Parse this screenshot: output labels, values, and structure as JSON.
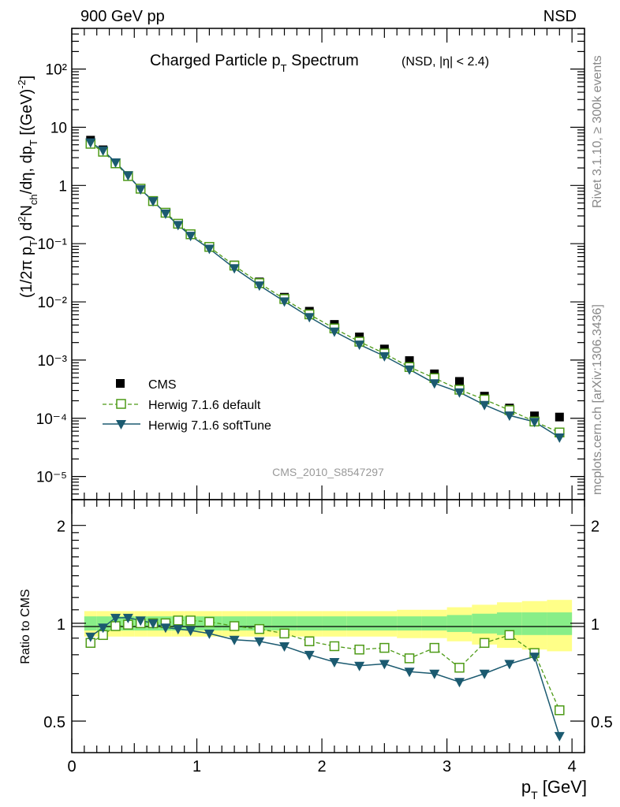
{
  "header": {
    "left": "900 GeV pp",
    "right": "NSD"
  },
  "side_labels": {
    "rivet": "Rivet 3.1.10, ≥ 300k events",
    "mcplots": "mcplots.cern.ch [arXiv:1306.3436]"
  },
  "chart_data": [
    {
      "type": "scatter",
      "panel": "main",
      "title_main": "Charged Particle p",
      "title_sub": "T",
      "title_rest": " Spectrum",
      "title_note": "(NSD, |η| < 2.4)",
      "ylabel": "(1/2π p_T) d²N_ch/dη, dp_T [(GeV)⁻²]",
      "yscale": "log",
      "ylim": [
        4e-06,
        500
      ],
      "xlim": [
        0,
        4.1
      ],
      "analysis_label": "CMS_2010_S8547297",
      "y_ticks": [
        "10⁻⁵",
        "10⁻⁴",
        "10⁻³",
        "10⁻²",
        "10⁻¹",
        "1",
        "10",
        "10²"
      ],
      "x": [
        0.15,
        0.25,
        0.35,
        0.45,
        0.55,
        0.65,
        0.75,
        0.85,
        0.95,
        1.1,
        1.3,
        1.5,
        1.7,
        1.9,
        2.1,
        2.3,
        2.5,
        2.7,
        2.9,
        3.1,
        3.3,
        3.5,
        3.7,
        3.9
      ],
      "legend": [
        "CMS",
        "Herwig 7.1.6 default",
        "Herwig 7.1.6 softTune"
      ],
      "series": [
        {
          "name": "CMS",
          "color": "#000000",
          "values": [
            6.0,
            4.1,
            2.45,
            1.45,
            0.88,
            0.54,
            0.34,
            0.22,
            0.145,
            0.088,
            0.043,
            0.022,
            0.012,
            0.0069,
            0.0041,
            0.0025,
            0.00155,
            0.00098,
            0.00058,
            0.00043,
            0.00024,
            0.00015,
            0.00011,
            0.000105
          ]
        },
        {
          "name": "Herwig 7.1.6 default",
          "color": "#4d9a16",
          "values": [
            5.2,
            3.8,
            2.4,
            1.45,
            0.88,
            0.54,
            0.34,
            0.22,
            0.145,
            0.088,
            0.042,
            0.021,
            0.0112,
            0.0061,
            0.0035,
            0.00207,
            0.0013,
            0.00076,
            0.00049,
            0.00031,
            0.00021,
            0.000138,
            8.8e-05,
            5.7e-05
          ]
        },
        {
          "name": "Herwig 7.1.6 softTune",
          "color": "#1b5a70",
          "values": [
            5.5,
            4.0,
            2.5,
            1.5,
            0.86,
            0.54,
            0.33,
            0.21,
            0.137,
            0.082,
            0.038,
            0.0192,
            0.0102,
            0.0055,
            0.0031,
            0.00185,
            0.00117,
            0.00069,
            0.0004,
            0.00028,
            0.00017,
            0.000112,
            8.7e-05,
            4.7e-05
          ]
        }
      ]
    },
    {
      "type": "line",
      "panel": "ratio",
      "ylabel": "Ratio to CMS",
      "xlabel": "p_T [GeV]",
      "yscale": "log",
      "ylim": [
        0.4,
        2.4
      ],
      "xlim": [
        0,
        4.1
      ],
      "y_ticks": [
        0.5,
        1,
        2
      ],
      "x_ticks": [
        0,
        1,
        2,
        3,
        4
      ],
      "band_edges": [
        0.1,
        0.2,
        0.3,
        0.4,
        0.5,
        0.6,
        0.7,
        0.8,
        0.9,
        1.0,
        1.2,
        1.4,
        1.6,
        1.8,
        2.0,
        2.2,
        2.4,
        2.6,
        2.8,
        3.0,
        3.2,
        3.4,
        3.6,
        3.8,
        4.0
      ],
      "band_inner": [
        0.05,
        0.05,
        0.05,
        0.05,
        0.05,
        0.05,
        0.05,
        0.05,
        0.05,
        0.05,
        0.05,
        0.05,
        0.05,
        0.05,
        0.05,
        0.05,
        0.05,
        0.05,
        0.05,
        0.06,
        0.07,
        0.08,
        0.08,
        0.08
      ],
      "band_outer": [
        0.09,
        0.09,
        0.09,
        0.09,
        0.09,
        0.09,
        0.09,
        0.09,
        0.09,
        0.09,
        0.09,
        0.09,
        0.09,
        0.09,
        0.09,
        0.09,
        0.09,
        0.1,
        0.1,
        0.12,
        0.14,
        0.16,
        0.17,
        0.18
      ],
      "band_colors": {
        "inner": "#88ee88",
        "outer": "#ffff88"
      },
      "x": [
        0.15,
        0.25,
        0.35,
        0.45,
        0.55,
        0.65,
        0.75,
        0.85,
        0.95,
        1.1,
        1.3,
        1.5,
        1.7,
        1.9,
        2.1,
        2.3,
        2.5,
        2.7,
        2.9,
        3.1,
        3.3,
        3.5,
        3.7,
        3.9
      ],
      "series": [
        {
          "name": "Herwig 7.1.6 default",
          "color": "#4d9a16",
          "values": [
            0.87,
            0.92,
            0.98,
            0.99,
            1.0,
            1.0,
            1.0,
            1.02,
            1.02,
            1.01,
            0.98,
            0.96,
            0.93,
            0.88,
            0.85,
            0.83,
            0.84,
            0.78,
            0.84,
            0.73,
            0.87,
            0.92,
            0.81,
            0.54
          ]
        },
        {
          "name": "Herwig 7.1.6 softTune",
          "color": "#1b5a70",
          "values": [
            0.91,
            0.97,
            1.04,
            1.04,
            1.02,
            1.0,
            0.97,
            0.96,
            0.95,
            0.93,
            0.89,
            0.88,
            0.85,
            0.8,
            0.76,
            0.74,
            0.75,
            0.71,
            0.7,
            0.66,
            0.7,
            0.75,
            0.79,
            0.45
          ]
        }
      ]
    }
  ]
}
